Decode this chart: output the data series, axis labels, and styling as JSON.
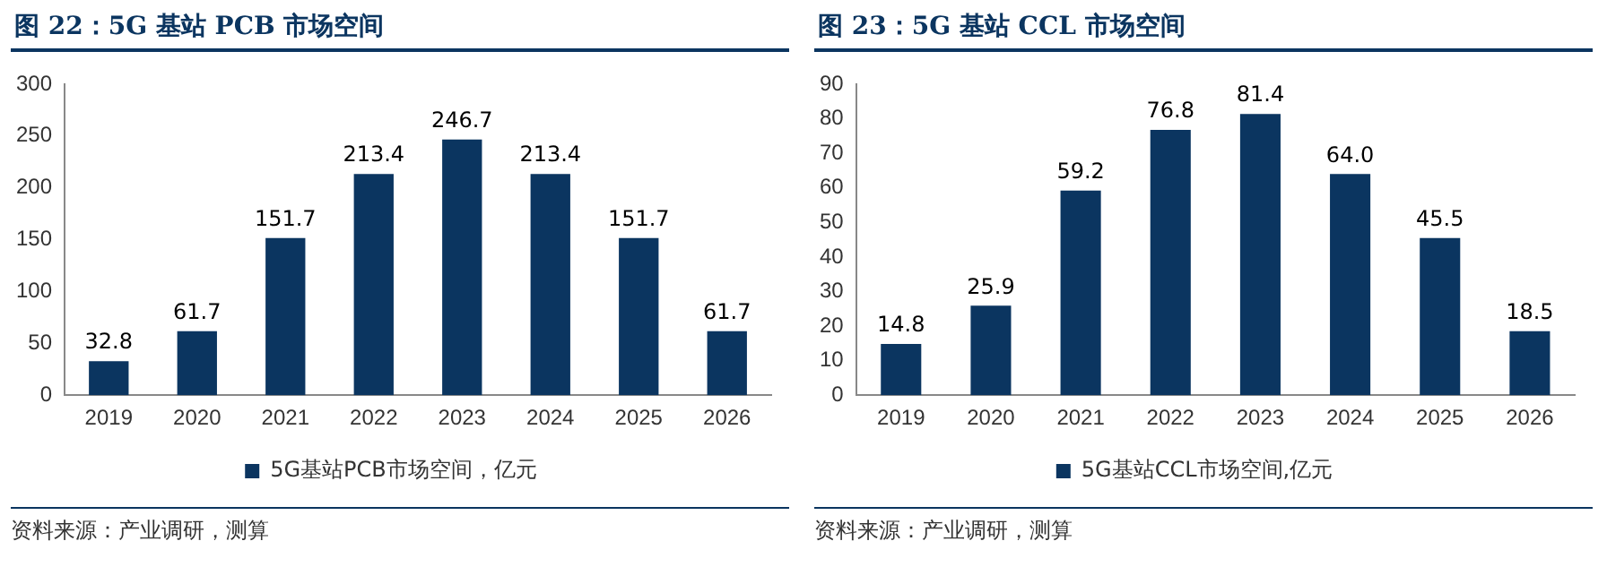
{
  "chart_data": [
    {
      "type": "bar",
      "title": "图 22：5G 基站 PCB 市场空间",
      "categories": [
        "2019",
        "2020",
        "2021",
        "2022",
        "2023",
        "2024",
        "2025",
        "2026"
      ],
      "series": [
        {
          "name": "5G基站PCB市场空间，亿元",
          "color": "#0b3560",
          "values": [
            32.8,
            61.7,
            151.7,
            213.4,
            246.7,
            213.4,
            151.7,
            61.7
          ]
        }
      ],
      "ylim": [
        0,
        300
      ],
      "yticks": [
        0,
        50,
        100,
        150,
        200,
        250,
        300
      ],
      "grid": false,
      "legend": "bottom",
      "data_labels": true,
      "annotations": [
        "资料来源：产业调研，测算"
      ]
    },
    {
      "type": "bar",
      "title": "图 23：5G 基站 CCL 市场空间",
      "categories": [
        "2019",
        "2020",
        "2021",
        "2022",
        "2023",
        "2024",
        "2025",
        "2026"
      ],
      "series": [
        {
          "name": "5G基站CCL市场空间,亿元",
          "color": "#0b3560",
          "values": [
            14.8,
            25.9,
            59.2,
            76.8,
            81.4,
            64.0,
            45.5,
            18.5
          ]
        }
      ],
      "ylim": [
        0,
        90
      ],
      "yticks": [
        0,
        10,
        20,
        30,
        40,
        50,
        60,
        70,
        80,
        90
      ],
      "grid": false,
      "legend": "bottom",
      "value_labels": [
        "14.8",
        "25.9",
        "59.2",
        "76.8",
        "81.4",
        "64.0",
        "45.5",
        "18.5"
      ],
      "annotations": [
        "资料来源：产业调研，测算"
      ]
    }
  ]
}
